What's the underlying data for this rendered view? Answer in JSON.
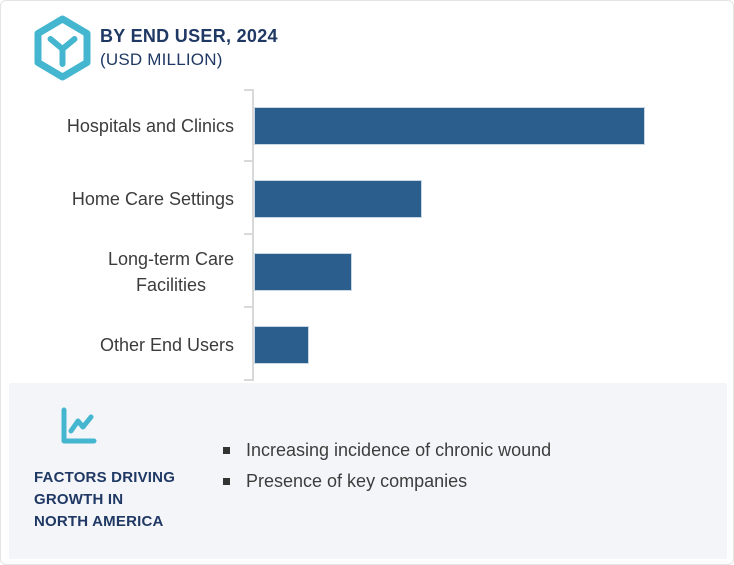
{
  "header": {
    "title": "BY END USER, 2024",
    "subtitle": "(USD MILLION)",
    "icon": "hexagon-cube-icon"
  },
  "chart_data": {
    "type": "bar",
    "orientation": "horizontal",
    "title": "BY END USER, 2024 (USD MILLION)",
    "unit": "USD Million",
    "categories": [
      "Hospitals and Clinics",
      "Home Care Settings",
      "Long-term Care\nFacilities",
      "Other End Users"
    ],
    "values": [
      100,
      43,
      25,
      14
    ],
    "values_note": "relative estimates (% of largest bar); no numeric axis labels are shown in the chart",
    "xlabel": "",
    "ylabel": "",
    "grid": false,
    "legend": null,
    "axis_tick_labels_visible": false,
    "bar_color": "#2b5e8c",
    "axis_color": "#d9d9d9"
  },
  "factors": {
    "icon": "line-chart-icon",
    "heading": "FACTORS DRIVING GROWTH IN NORTH AMERICA",
    "heading_lines": [
      "FACTORS DRIVING",
      "GROWTH IN",
      "NORTH AMERICA"
    ],
    "bullets": [
      "Increasing incidence of chronic wound",
      "Presence of key companies"
    ]
  },
  "colors": {
    "accent_teal": "#45b6cf",
    "navy": "#1f3864",
    "bar_blue": "#2b5e8c",
    "panel_bg": "#f3f5f8",
    "label_text": "#3c3c3c",
    "axis_gray": "#d9d9d9"
  }
}
